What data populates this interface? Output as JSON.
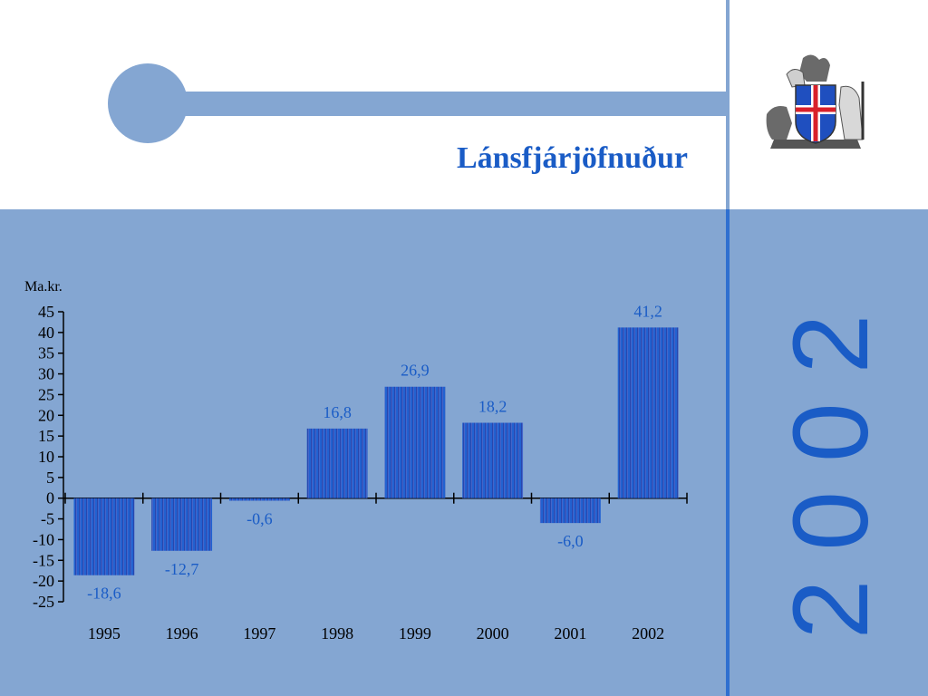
{
  "slide": {
    "title": "Lánsfjárjöfnuður",
    "year": "2002",
    "colors": {
      "accent_blue": "#84a6d2",
      "title_blue": "#1a5cc6",
      "bar_blue": "#2a56c8"
    },
    "logo": "icelandic-coat-of-arms-icon"
  },
  "chart_data": {
    "type": "bar",
    "ylabel": "Ma.kr.",
    "categories": [
      "1995",
      "1996",
      "1997",
      "1998",
      "1999",
      "2000",
      "2001",
      "2002"
    ],
    "values": [
      -18.6,
      -12.7,
      -0.6,
      16.8,
      26.9,
      18.2,
      -6.0,
      41.2
    ],
    "value_labels": [
      "-18,6",
      "-12,7",
      "-0,6",
      "16,8",
      "26,9",
      "18,2",
      "-6,0",
      "41,2"
    ],
    "ylim": [
      -25,
      45
    ],
    "yticks": [
      "45",
      "40",
      "35",
      "30",
      "25",
      "20",
      "15",
      "10",
      "5",
      "0",
      "-5",
      "-10",
      "-15",
      "-20",
      "-25"
    ],
    "grid": false,
    "legend": "none"
  }
}
